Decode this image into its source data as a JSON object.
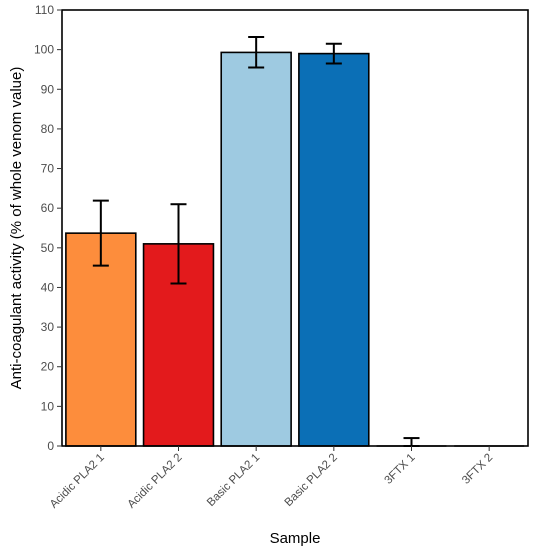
{
  "chart_data": {
    "type": "bar",
    "xlabel": "Sample",
    "ylabel": "Anti-coagulant activity (% of whole venom value)",
    "ylim": [
      0,
      110
    ],
    "yticks": [
      0,
      10,
      20,
      30,
      40,
      50,
      60,
      70,
      80,
      90,
      100,
      110
    ],
    "grid": false,
    "categories": [
      "Acidic PLA2 1",
      "Acidic PLA2 2",
      "Basic PLA2 1",
      "Basic PLA2 2",
      "3FTX 1",
      "3FTX 2"
    ],
    "values": [
      53.7,
      51.0,
      99.3,
      99.0,
      0.0,
      0.0
    ],
    "error_low": [
      45.5,
      41.0,
      95.5,
      96.5,
      0.0,
      0.0
    ],
    "error_high": [
      61.9,
      61.0,
      103.2,
      101.5,
      2.0,
      0.0
    ],
    "colors": [
      "#fd8d3c",
      "#e31a1c",
      "#9ecae1",
      "#0b6fb6",
      "#ffffff",
      "#ffffff"
    ]
  }
}
